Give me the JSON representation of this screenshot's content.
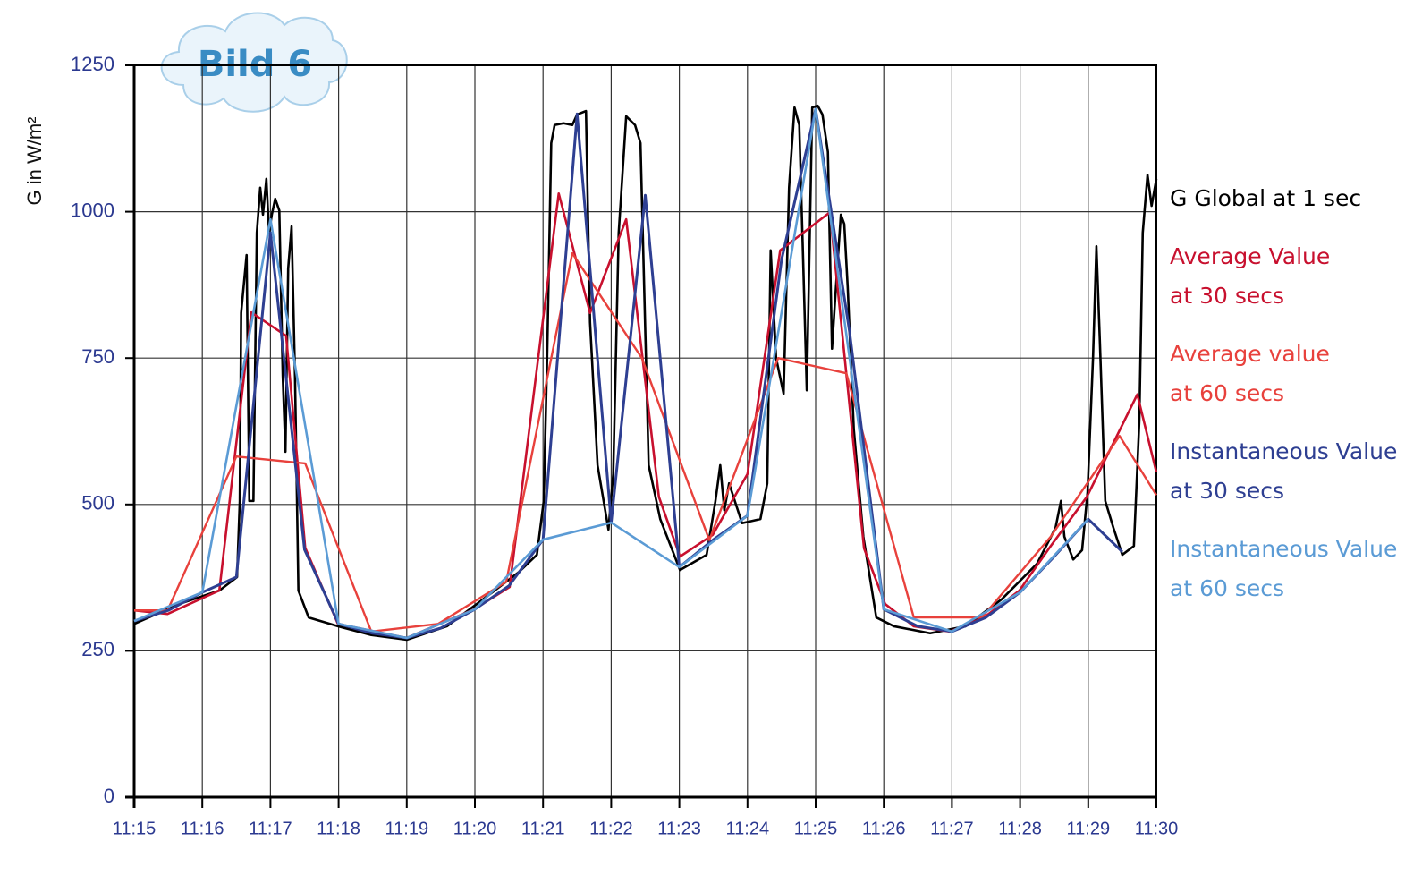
{
  "chart_data": {
    "type": "line",
    "badge": "Bild 6",
    "y_label": "G in W/m²",
    "xlim": [
      0,
      15
    ],
    "xticks": [
      {
        "value": 0,
        "label": "11:15"
      },
      {
        "value": 1,
        "label": "11:16"
      },
      {
        "value": 2,
        "label": "11:17"
      },
      {
        "value": 3,
        "label": "11:18"
      },
      {
        "value": 4,
        "label": "11:19"
      },
      {
        "value": 5,
        "label": "11:20"
      },
      {
        "value": 6,
        "label": "11:21"
      },
      {
        "value": 7,
        "label": "11:22"
      },
      {
        "value": 8,
        "label": "11:23"
      },
      {
        "value": 9,
        "label": "11:24"
      },
      {
        "value": 10,
        "label": "11:25"
      },
      {
        "value": 11,
        "label": "11:26"
      },
      {
        "value": 12,
        "label": "11:27"
      },
      {
        "value": 13,
        "label": "11:28"
      },
      {
        "value": 14,
        "label": "11:29"
      },
      {
        "value": 15,
        "label": "11:30"
      }
    ],
    "ylim": [
      0,
      1250
    ],
    "yticks": [
      0,
      250,
      500,
      750,
      1000,
      1250
    ],
    "grid": true,
    "series": [
      {
        "name": "G Global at 1 sec",
        "color": "#000000",
        "width": 2.6,
        "x": [
          0,
          0.66,
          1.25,
          1.51,
          1.55,
          1.57,
          1.65,
          1.69,
          1.75,
          1.8,
          1.85,
          1.89,
          1.94,
          1.98,
          2.02,
          2.07,
          2.13,
          2.18,
          2.22,
          2.26,
          2.31,
          2.36,
          2.41,
          2.56,
          2.99,
          3.48,
          4,
          4.59,
          5.12,
          5.64,
          5.91,
          6.01,
          6.06,
          6.12,
          6.17,
          6.3,
          6.43,
          6.5,
          6.63,
          6.69,
          6.8,
          6.96,
          7.03,
          7.11,
          7.22,
          7.35,
          7.43,
          7.48,
          7.55,
          7.72,
          8.01,
          8.4,
          8.53,
          8.6,
          8.66,
          8.73,
          8.92,
          9.19,
          9.29,
          9.34,
          9.42,
          9.53,
          9.61,
          9.69,
          9.76,
          9.82,
          9.87,
          9.95,
          10.03,
          10.1,
          10.18,
          10.24,
          10.29,
          10.37,
          10.42,
          10.47,
          10.56,
          10.7,
          10.89,
          11.15,
          11.68,
          12.2,
          12.73,
          13.25,
          13.52,
          13.6,
          13.65,
          13.78,
          13.91,
          13.99,
          14.07,
          14.12,
          14.17,
          14.25,
          14.37,
          14.5,
          14.67,
          14.75,
          14.8,
          14.87,
          14.93,
          15
        ],
        "values": [
          296,
          330,
          353,
          376,
          506,
          827,
          926,
          506,
          506,
          964,
          1041,
          995,
          1056,
          964,
          995,
          1022,
          1002,
          720,
          590,
          903,
          975,
          720,
          353,
          307,
          292,
          277,
          269,
          292,
          338,
          384,
          414,
          506,
          750,
          1117,
          1148,
          1151,
          1148,
          1166,
          1172,
          811,
          567,
          457,
          552,
          964,
          1163,
          1148,
          1117,
          888,
          567,
          475,
          388,
          414,
          506,
          567,
          490,
          536,
          468,
          475,
          536,
          934,
          750,
          689,
          1041,
          1178,
          1148,
          903,
          695,
          1178,
          1181,
          1166,
          1102,
          766,
          857,
          995,
          979,
          872,
          628,
          445,
          307,
          292,
          280,
          292,
          338,
          399,
          460,
          506,
          445,
          406,
          422,
          521,
          750,
          941,
          781,
          506,
          460,
          414,
          429,
          643,
          964,
          1063,
          1010,
          1056
        ]
      },
      {
        "name": "Average Value\nat 30 secs",
        "color": "#c8102e",
        "width": 2.6,
        "x": [
          0,
          0.49,
          1.25,
          1.72,
          2.23,
          2.51,
          2.99,
          4,
          4.99,
          5.51,
          6.23,
          6.69,
          7.22,
          7.7,
          8.01,
          8.49,
          9,
          9.48,
          10.21,
          10.71,
          11.02,
          11.44,
          11.97,
          12.47,
          12.99,
          13.45,
          13.98,
          14.72,
          15
        ],
        "values": [
          319,
          313,
          353,
          828,
          788,
          426,
          296,
          272,
          321,
          359,
          1031,
          827,
          987,
          513,
          411,
          448,
          552,
          934,
          999,
          425,
          330,
          292,
          283,
          307,
          353,
          429,
          513,
          688,
          555
        ]
      },
      {
        "name": "Average value\nat 60 secs",
        "color": "#e8413c",
        "width": 2.4,
        "x": [
          0,
          0.49,
          1.5,
          2.51,
          3.48,
          4.46,
          5.46,
          6.43,
          7.45,
          8.44,
          9.45,
          10.45,
          11.44,
          12.44,
          13.45,
          14.46,
          15
        ],
        "values": [
          319,
          319,
          582,
          570,
          283,
          296,
          368,
          929,
          750,
          439,
          750,
          724,
          307,
          307,
          445,
          617,
          516
        ]
      },
      {
        "name": "Instantaneous Value\nat 30 secs",
        "color": "#2e3f92",
        "width": 3,
        "x": [
          0,
          0.5,
          1,
          1.5,
          2,
          2.5,
          3,
          3.5,
          4,
          4.5,
          5,
          5.5,
          6,
          6.5,
          7,
          7.5,
          8,
          8.5,
          9,
          9.5,
          10,
          10.5,
          11,
          11.5,
          12,
          12.5,
          13,
          13.5,
          14,
          14.5
        ],
        "values": [
          301,
          319,
          350,
          376,
          964,
          423,
          296,
          280,
          272,
          289,
          321,
          361,
          440,
          1167,
          469,
          1028,
          393,
          440,
          481,
          918,
          1175,
          793,
          321,
          292,
          283,
          307,
          350,
          411,
          475,
          419
        ]
      },
      {
        "name": "Instantaneous Value\nat 60 secs",
        "color": "#5b9bd5",
        "width": 2.6,
        "x": [
          0,
          1,
          2,
          3,
          4,
          5,
          6,
          7,
          8,
          9,
          10,
          11,
          12,
          13,
          14
        ],
        "values": [
          301,
          350,
          987,
          296,
          272,
          321,
          440,
          469,
          393,
          481,
          1175,
          321,
          283,
          350,
          475
        ]
      }
    ]
  }
}
